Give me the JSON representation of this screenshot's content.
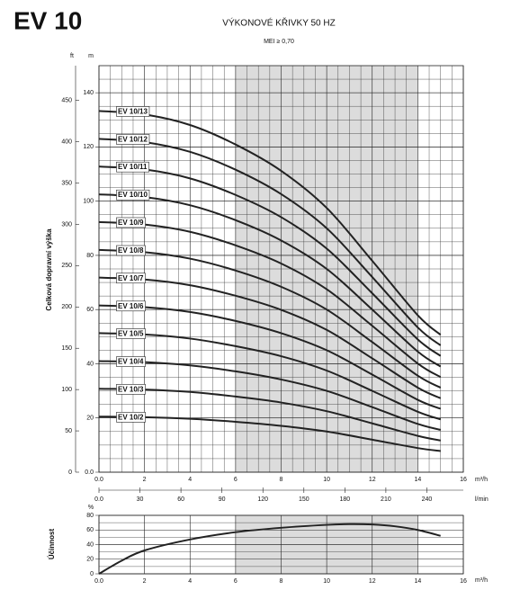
{
  "title": "EV 10",
  "chart_data": [
    {
      "type": "line",
      "title": "VÝKONOVÉ KŘIVKY 50 HZ",
      "subtitle": "MEI ≥ 0,70",
      "x_label": "m³/h",
      "x2_label": "l/min",
      "y_label": "Celková dopravní výška",
      "y_unit": "m",
      "y2_unit": "ft",
      "x": [
        0,
        2,
        4,
        6,
        8,
        10,
        12,
        14,
        15
      ],
      "series": [
        {
          "name": "EV 10/13",
          "color": "#222222",
          "values": [
            133.3,
            132.0,
            128.1,
            120.9,
            111.2,
            97.5,
            78.0,
            57.9,
            50.7
          ]
        },
        {
          "name": "EV 10/12",
          "color": "#222222",
          "values": [
            123.0,
            121.8,
            118.2,
            111.6,
            102.6,
            90.0,
            72.0,
            53.4,
            46.8
          ]
        },
        {
          "name": "EV 10/11",
          "color": "#222222",
          "values": [
            112.8,
            111.7,
            108.4,
            102.3,
            94.1,
            82.5,
            66.0,
            49.0,
            42.9
          ]
        },
        {
          "name": "EV 10/10",
          "color": "#222222",
          "values": [
            102.5,
            101.5,
            98.5,
            93.0,
            85.5,
            75.0,
            60.0,
            44.5,
            39.0
          ]
        },
        {
          "name": "EV 10/9",
          "color": "#222222",
          "values": [
            92.3,
            91.4,
            88.7,
            83.7,
            77.0,
            67.5,
            54.0,
            40.1,
            35.1
          ]
        },
        {
          "name": "EV 10/8",
          "color": "#222222",
          "values": [
            82.0,
            81.2,
            78.8,
            74.4,
            68.4,
            60.0,
            48.0,
            35.6,
            31.2
          ]
        },
        {
          "name": "EV 10/7",
          "color": "#222222",
          "values": [
            71.8,
            71.1,
            69.0,
            65.1,
            59.9,
            52.5,
            42.0,
            31.2,
            27.3
          ]
        },
        {
          "name": "EV 10/6",
          "color": "#222222",
          "values": [
            61.5,
            60.9,
            59.1,
            55.8,
            51.3,
            45.0,
            36.0,
            26.7,
            23.4
          ]
        },
        {
          "name": "EV 10/5",
          "color": "#222222",
          "values": [
            51.3,
            50.8,
            49.3,
            46.5,
            42.8,
            37.5,
            30.0,
            22.3,
            19.5
          ]
        },
        {
          "name": "EV 10/4",
          "color": "#222222",
          "values": [
            41.0,
            40.6,
            39.4,
            37.2,
            34.2,
            30.0,
            24.0,
            17.8,
            15.6
          ]
        },
        {
          "name": "EV 10/3",
          "color": "#222222",
          "values": [
            30.8,
            30.5,
            29.6,
            27.9,
            25.7,
            22.5,
            18.0,
            13.4,
            11.7
          ]
        },
        {
          "name": "EV 10/2",
          "color": "#222222",
          "values": [
            20.5,
            20.3,
            19.7,
            18.6,
            17.1,
            15.0,
            12.0,
            8.9,
            7.8
          ]
        }
      ],
      "xlim": [
        0,
        16
      ],
      "xticks": [
        {
          "value": 0,
          "label": "0.0"
        },
        2,
        4,
        6,
        8,
        10,
        12,
        14,
        16
      ],
      "x2lim": [
        0,
        266.7
      ],
      "x2ticks": [
        {
          "value": 0,
          "label": "0.0"
        },
        30,
        60,
        90,
        120,
        150,
        180,
        210,
        240
      ],
      "ylim": [
        0,
        150
      ],
      "yticks": [
        {
          "value": 0,
          "label": "0.0"
        },
        20,
        40,
        60,
        80,
        100,
        120,
        140
      ],
      "y2lim": [
        0,
        492.1
      ],
      "y2ticks": [
        0,
        50,
        100,
        150,
        200,
        250,
        300,
        350,
        400,
        450
      ],
      "highlight_xrange": [
        6,
        14
      ],
      "highlight_color": "#dcdcdc",
      "grid": true
    },
    {
      "type": "line",
      "y_label": "Účinnost",
      "y_unit": "%",
      "x_label": "m³/h",
      "x": [
        0,
        1,
        2,
        4,
        6,
        8,
        10,
        11,
        12,
        13,
        14,
        15
      ],
      "values": [
        0,
        18,
        32,
        47,
        57,
        63,
        67,
        68,
        67.5,
        65,
        60,
        52
      ],
      "color": "#222222",
      "xlim": [
        0,
        16
      ],
      "xticks": [
        {
          "value": 0,
          "label": "0.0"
        },
        2,
        4,
        6,
        8,
        10,
        12,
        14,
        16
      ],
      "ylim": [
        0,
        80
      ],
      "yticks": [
        0,
        20,
        40,
        60,
        80
      ],
      "highlight_xrange": [
        6,
        14
      ],
      "highlight_color": "#dcdcdc",
      "grid": true
    }
  ]
}
